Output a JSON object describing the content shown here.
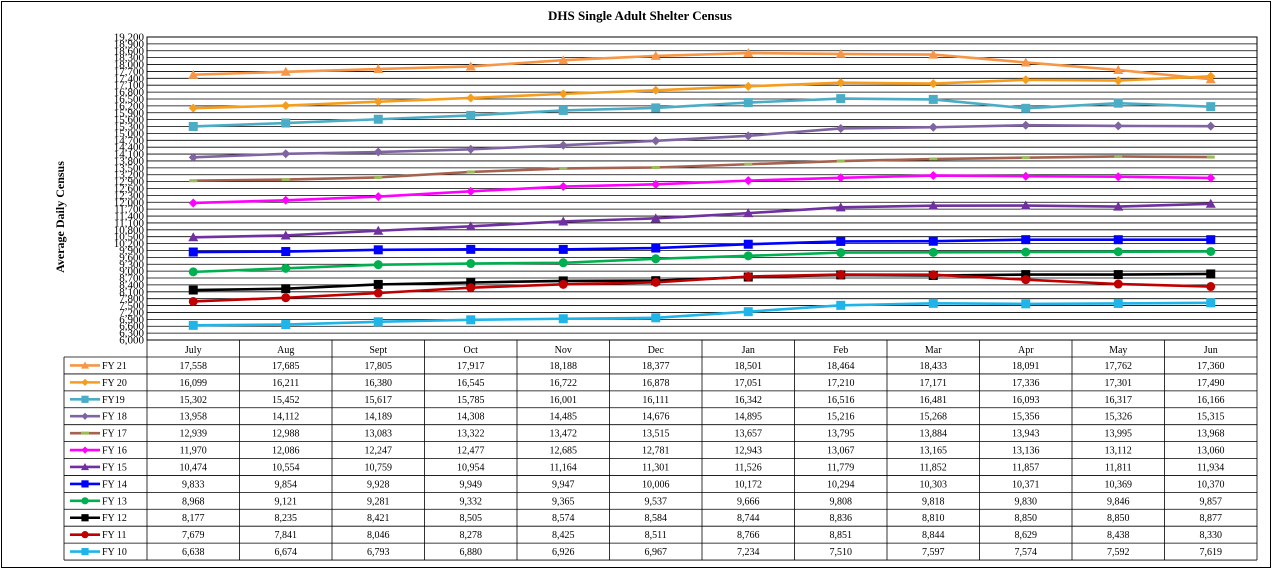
{
  "chart_data": {
    "type": "line",
    "title": "DHS Single Adult Shelter Census",
    "ylabel": "Average Daily Census",
    "xlabel": "",
    "categories": [
      "July",
      "Aug",
      "Sept",
      "Oct",
      "Nov",
      "Dec",
      "Jan",
      "Feb",
      "Mar",
      "Apr",
      "May",
      "Jun"
    ],
    "ylim": [
      6000,
      19200
    ],
    "ytick_step": 300,
    "grid": true,
    "legend": "data-table-left",
    "series": [
      {
        "name": "FY 21",
        "color": "#F79646",
        "marker": "triangle",
        "values": [
          17558,
          17685,
          17805,
          17917,
          18188,
          18377,
          18501,
          18464,
          18433,
          18091,
          17762,
          17360
        ]
      },
      {
        "name": "FY 20",
        "color": "#F59D1D",
        "marker": "diamond",
        "values": [
          16099,
          16211,
          16380,
          16545,
          16722,
          16878,
          17051,
          17210,
          17171,
          17336,
          17301,
          17490
        ]
      },
      {
        "name": "FY19",
        "color": "#4BACC6",
        "marker": "square",
        "values": [
          15302,
          15452,
          15617,
          15785,
          16001,
          16111,
          16342,
          16516,
          16481,
          16093,
          16317,
          16166
        ]
      },
      {
        "name": "FY 18",
        "color": "#8064A2",
        "marker": "diamond",
        "values": [
          13958,
          14112,
          14189,
          14308,
          14485,
          14676,
          14895,
          15216,
          15268,
          15356,
          15326,
          15315
        ]
      },
      {
        "name": "FY 17",
        "color": "#A5624F",
        "marker": "dash",
        "values": [
          12939,
          12988,
          13083,
          13322,
          13472,
          13515,
          13657,
          13795,
          13884,
          13943,
          13995,
          13968
        ]
      },
      {
        "name": "FY 16",
        "color": "#FF00FF",
        "marker": "diamond",
        "values": [
          11970,
          12086,
          12247,
          12477,
          12685,
          12781,
          12943,
          13067,
          13165,
          13136,
          13112,
          13060
        ]
      },
      {
        "name": "FY 15",
        "color": "#7030A0",
        "marker": "triangle",
        "values": [
          10474,
          10554,
          10759,
          10954,
          11164,
          11301,
          11526,
          11779,
          11852,
          11857,
          11811,
          11934
        ]
      },
      {
        "name": "FY 14",
        "color": "#0000FF",
        "marker": "square",
        "values": [
          9833,
          9854,
          9928,
          9949,
          9947,
          10006,
          10172,
          10294,
          10303,
          10371,
          10369,
          10370
        ]
      },
      {
        "name": "FY 13",
        "color": "#00B050",
        "marker": "circle",
        "values": [
          8968,
          9121,
          9281,
          9332,
          9365,
          9537,
          9666,
          9808,
          9818,
          9830,
          9846,
          9857
        ]
      },
      {
        "name": "FY 12",
        "color": "#000000",
        "marker": "square",
        "values": [
          8177,
          8235,
          8421,
          8505,
          8574,
          8584,
          8744,
          8836,
          8810,
          8850,
          8850,
          8877
        ]
      },
      {
        "name": "FY 11",
        "color": "#C00000",
        "marker": "circle",
        "values": [
          7679,
          7841,
          8046,
          8278,
          8425,
          8511,
          8766,
          8851,
          8844,
          8629,
          8438,
          8330
        ]
      },
      {
        "name": "FY 10",
        "color": "#1FB5E8",
        "marker": "square",
        "values": [
          6638,
          6674,
          6793,
          6880,
          6926,
          6967,
          7234,
          7510,
          7597,
          7574,
          7592,
          7619
        ]
      }
    ]
  }
}
